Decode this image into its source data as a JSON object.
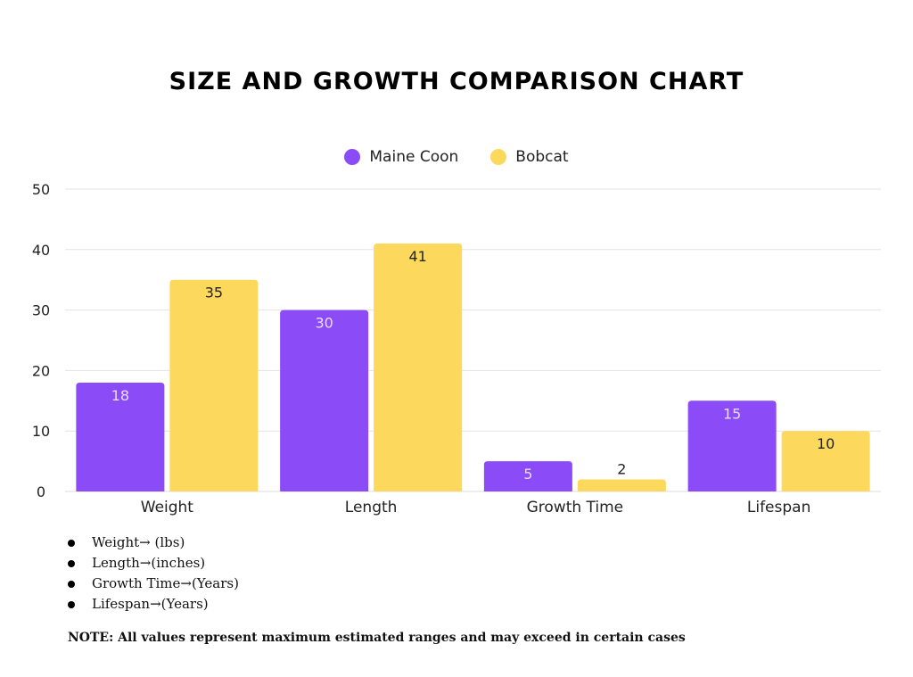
{
  "chart_data": {
    "type": "bar",
    "title": "SIZE AND GROWTH COMPARISON CHART",
    "categories": [
      "Weight",
      "Length",
      "Growth Time",
      "Lifespan"
    ],
    "series": [
      {
        "name": "Maine Coon",
        "values": [
          18,
          30,
          5,
          15
        ],
        "color": "#8b4cf7",
        "label_color": "#e9ddff"
      },
      {
        "name": "Bobcat",
        "values": [
          35,
          41,
          2,
          10
        ],
        "color": "#fcd95c",
        "label_color": "#222222"
      }
    ],
    "yticks": [
      0,
      10,
      20,
      30,
      40,
      50
    ],
    "ylim": [
      0,
      50
    ],
    "grid": true,
    "legend_position": "top-center",
    "xlabel": "",
    "ylabel": ""
  },
  "units": [
    "Weight→ (lbs)",
    "Length→(inches)",
    "Growth Time→(Years)",
    "Lifespan→(Years)"
  ],
  "note": "NOTE: All values represent maximum estimated ranges and may exceed in certain cases"
}
